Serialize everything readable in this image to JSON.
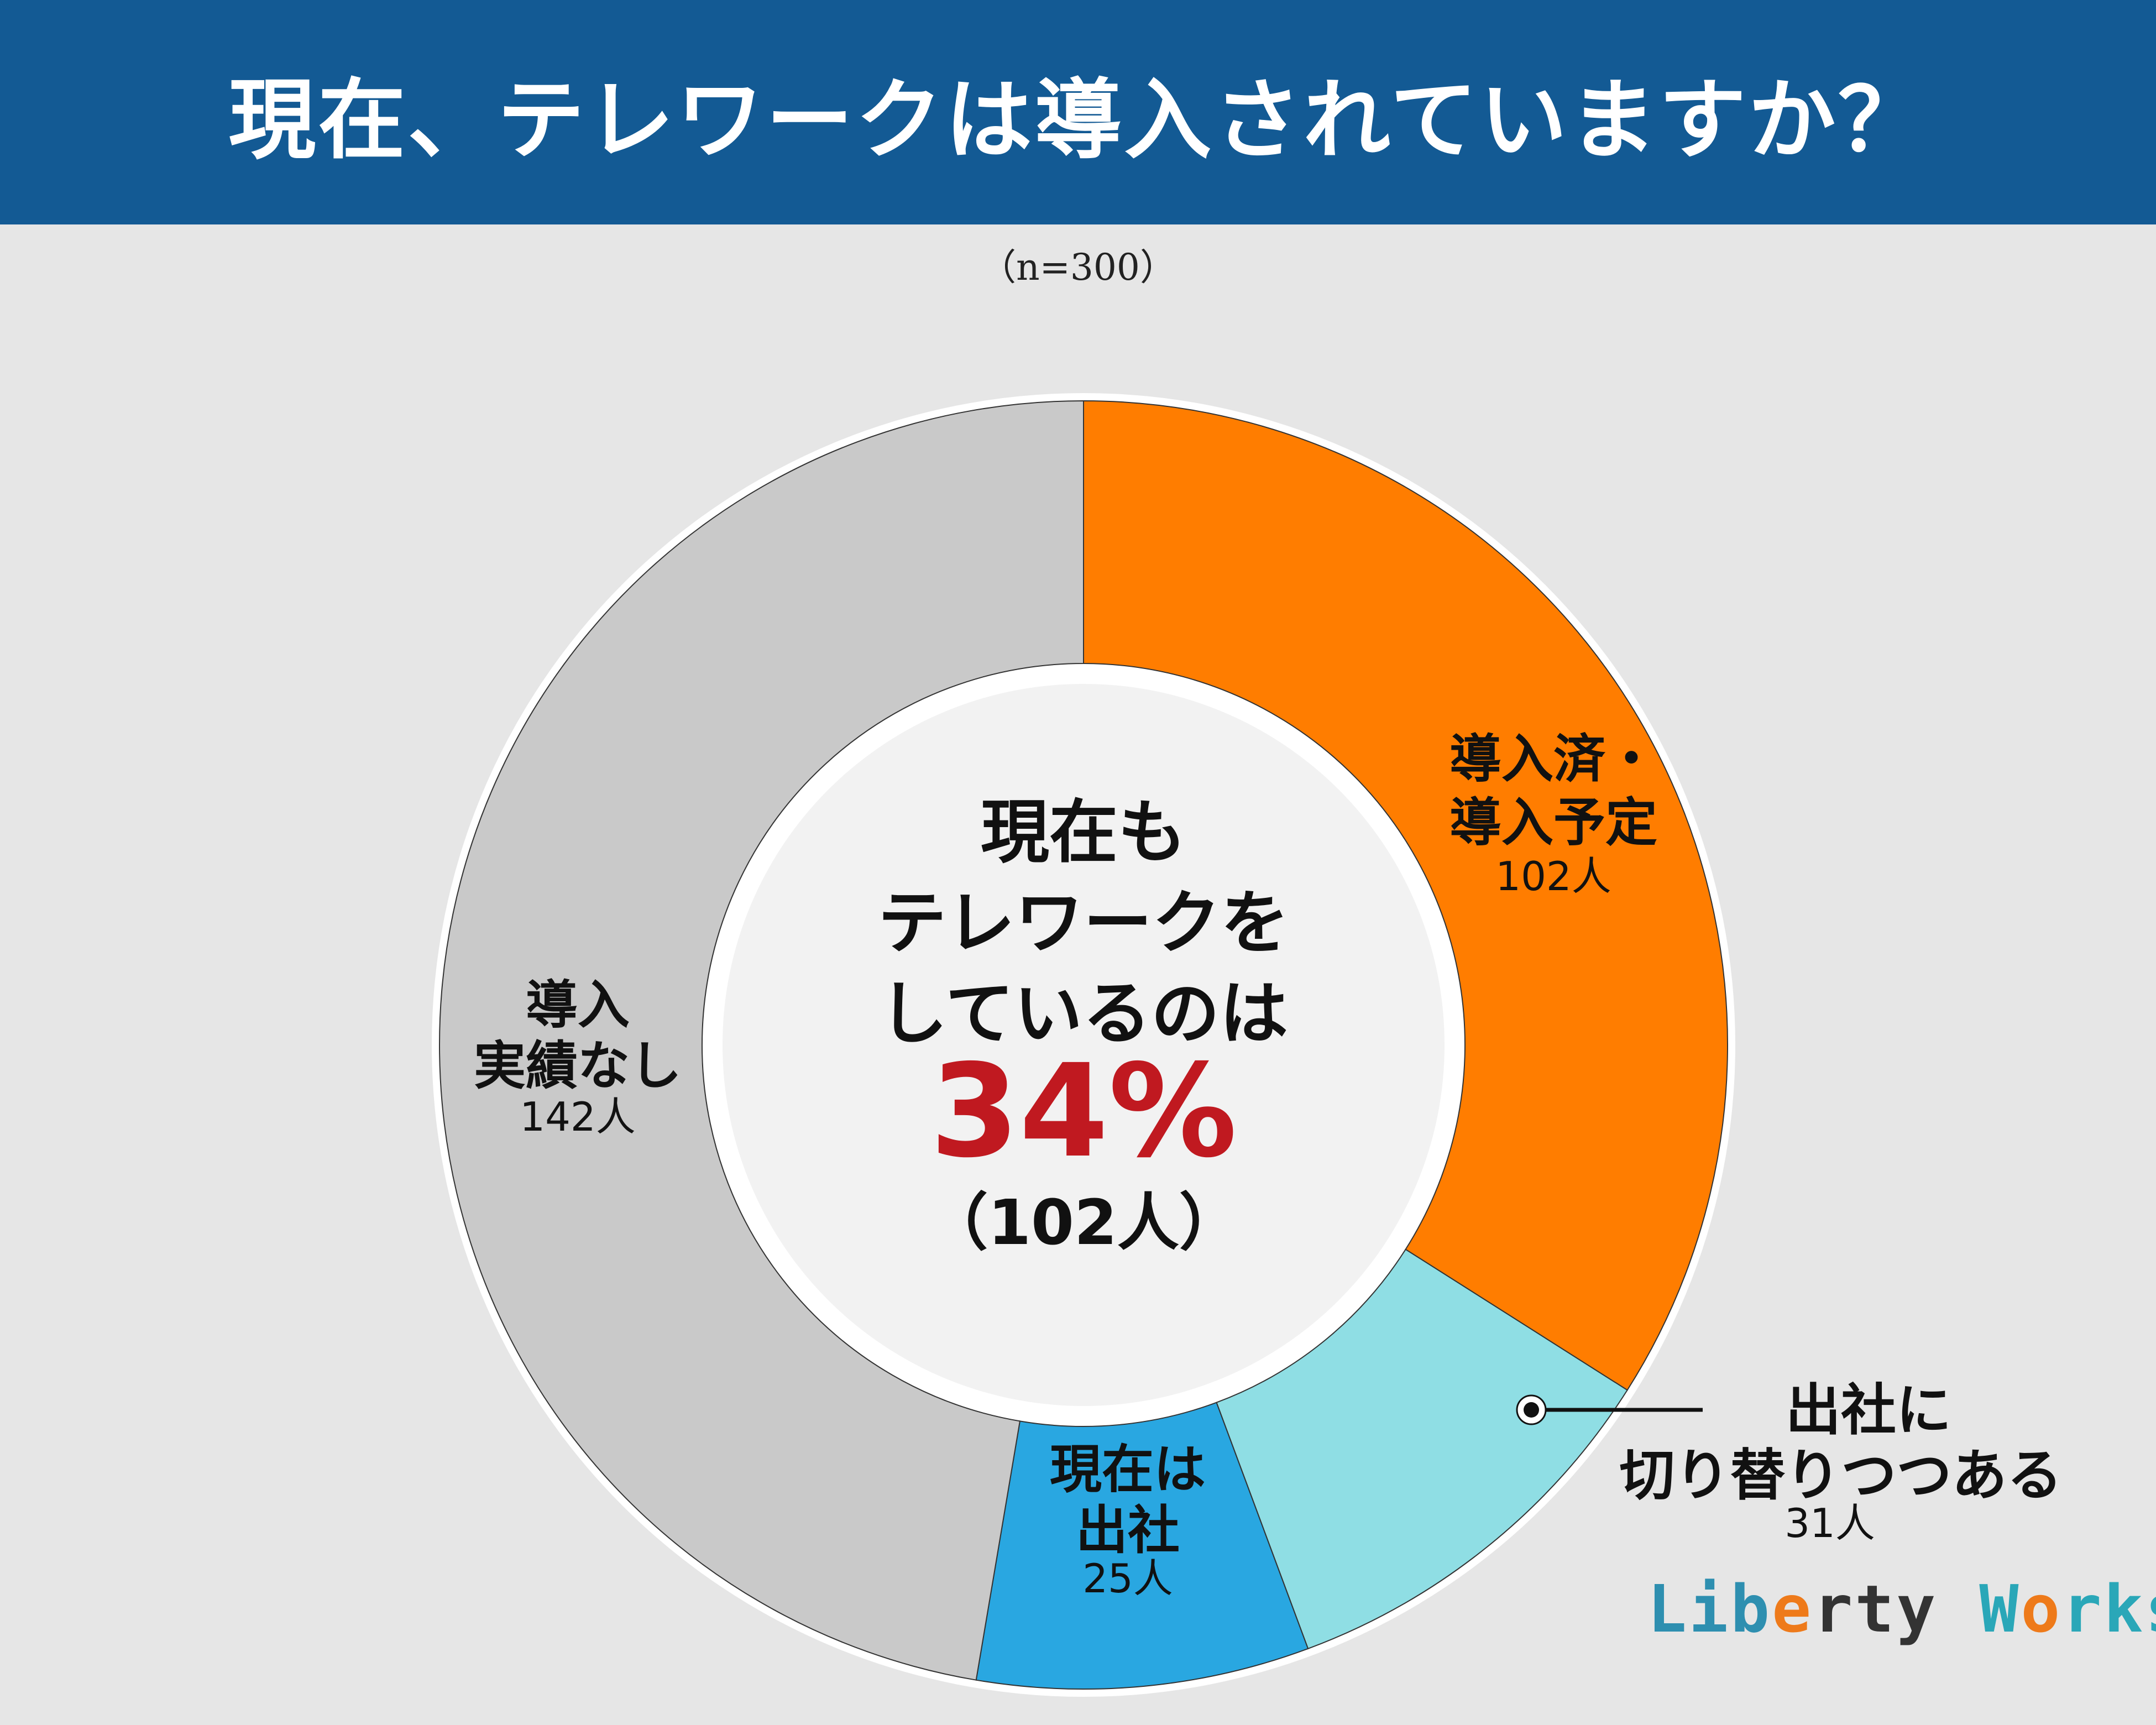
{
  "title": "現在、テレワークは導入されていますか？",
  "sample_size": "（n=300）",
  "center_text": {
    "line1": "現在も",
    "line2": "テレワークを",
    "line3": "しているのは",
    "percent": "34%",
    "count": "（102人）"
  },
  "chart_data": {
    "type": "pie",
    "donut": true,
    "total": 300,
    "slices": [
      {
        "label_lines": [
          "導入済・",
          "導入予定"
        ],
        "value": 102,
        "value_label": "102人",
        "color": "#ff7d00"
      },
      {
        "label_lines": [
          "出社に",
          "切り替りつつある"
        ],
        "value": 31,
        "value_label": "31人",
        "color": "#8fdee4"
      },
      {
        "label_lines": [
          "現在は",
          "出社"
        ],
        "value": 25,
        "value_label": "25人",
        "color": "#29a7e1"
      },
      {
        "label_lines": [
          "導入",
          "実績なし"
        ],
        "value": 142,
        "value_label": "142人",
        "color": "#c9c9c9"
      }
    ]
  },
  "logo": {
    "letters": [
      {
        "ch": "L",
        "color": "#2e8fb0"
      },
      {
        "ch": "i",
        "color": "#2e8fb0"
      },
      {
        "ch": "b",
        "color": "#2e8fb0"
      },
      {
        "ch": "e",
        "color": "#ee7a1a"
      },
      {
        "ch": "r",
        "color": "#333333"
      },
      {
        "ch": "t",
        "color": "#333333"
      },
      {
        "ch": "y",
        "color": "#333333"
      },
      {
        "ch": " ",
        "color": "#333333"
      },
      {
        "ch": "W",
        "color": "#2aa7b8"
      },
      {
        "ch": "o",
        "color": "#ee7a1a"
      },
      {
        "ch": "r",
        "color": "#2aa7b8"
      },
      {
        "ch": "k",
        "color": "#2aa7b8"
      },
      {
        "ch": "s",
        "color": "#2aa7b8"
      }
    ]
  },
  "colors": {
    "header_bg": "#135a94",
    "background": "#e6e6e6",
    "accent_red": "#c01920",
    "center_fill": "#f2f2f2"
  }
}
